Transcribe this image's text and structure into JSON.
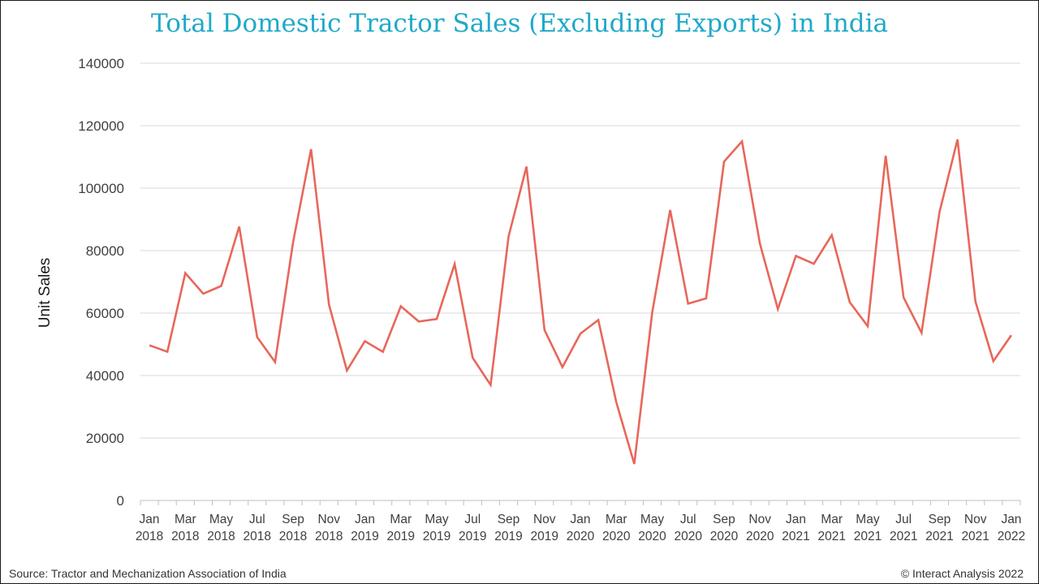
{
  "chart_data": {
    "type": "line",
    "title": "Total Domestic Tractor Sales (Excluding Exports) in India",
    "ylabel": "Unit Sales",
    "xlabel": "",
    "ylim": [
      0,
      140000
    ],
    "yticks": [
      "0",
      "20000",
      "40000",
      "60000",
      "80000",
      "100000",
      "120000",
      "140000"
    ],
    "grid": true,
    "line_color": "#e8675a",
    "x": [
      "Jan 2018",
      "Feb 2018",
      "Mar 2018",
      "Apr 2018",
      "May 2018",
      "Jun 2018",
      "Jul 2018",
      "Aug 2018",
      "Sep 2018",
      "Oct 2018",
      "Nov 2018",
      "Dec 2018",
      "Jan 2019",
      "Feb 2019",
      "Mar 2019",
      "Apr 2019",
      "May 2019",
      "Jun 2019",
      "Jul 2019",
      "Aug 2019",
      "Sep 2019",
      "Oct 2019",
      "Nov 2019",
      "Dec 2019",
      "Jan 2020",
      "Feb 2020",
      "Mar 2020",
      "Apr 2020",
      "May 2020",
      "Jun 2020",
      "Jul 2020",
      "Aug 2020",
      "Sep 2020",
      "Oct 2020",
      "Nov 2020",
      "Dec 2020",
      "Jan 2021",
      "Feb 2021",
      "Mar 2021",
      "Apr 2021",
      "May 2021",
      "Jun 2021",
      "Jul 2021",
      "Aug 2021",
      "Sep 2021",
      "Oct 2021",
      "Nov 2021",
      "Dec 2021",
      "Jan 2022"
    ],
    "xtick_labels": [
      [
        "Jan",
        "2018"
      ],
      [
        "Mar",
        "2018"
      ],
      [
        "May",
        "2018"
      ],
      [
        "Jul",
        "2018"
      ],
      [
        "Sep",
        "2018"
      ],
      [
        "Nov",
        "2018"
      ],
      [
        "Jan",
        "2019"
      ],
      [
        "Mar",
        "2019"
      ],
      [
        "May",
        "2019"
      ],
      [
        "Jul",
        "2019"
      ],
      [
        "Sep",
        "2019"
      ],
      [
        "Nov",
        "2019"
      ],
      [
        "Jan",
        "2020"
      ],
      [
        "Mar",
        "2020"
      ],
      [
        "May",
        "2020"
      ],
      [
        "Jul",
        "2020"
      ],
      [
        "Sep",
        "2020"
      ],
      [
        "Nov",
        "2020"
      ],
      [
        "Jan",
        "2021"
      ],
      [
        "Mar",
        "2021"
      ],
      [
        "May",
        "2021"
      ],
      [
        "Jul",
        "2021"
      ],
      [
        "Sep",
        "2021"
      ],
      [
        "Nov",
        "2021"
      ],
      [
        "Jan",
        "2022"
      ]
    ],
    "series": [
      {
        "name": "Total Domestic Tractor Sales",
        "values": [
          49700,
          47600,
          72800,
          66200,
          68700,
          87700,
          52300,
          44300,
          82600,
          112500,
          62700,
          41600,
          51000,
          47600,
          62200,
          57300,
          58100,
          75700,
          45700,
          37000,
          84500,
          106900,
          54600,
          42700,
          53400,
          57800,
          31500,
          11700,
          60200,
          93000,
          63000,
          64700,
          108500,
          115000,
          82200,
          61300,
          78300,
          75800,
          85000,
          63500,
          55800,
          110400,
          65000,
          53700,
          92300,
          115600,
          63700,
          44600,
          52900
        ]
      }
    ]
  },
  "footer": {
    "source": "Source: Tractor and Mechanization Association of India",
    "copyright": "© Interact Analysis 2022"
  }
}
